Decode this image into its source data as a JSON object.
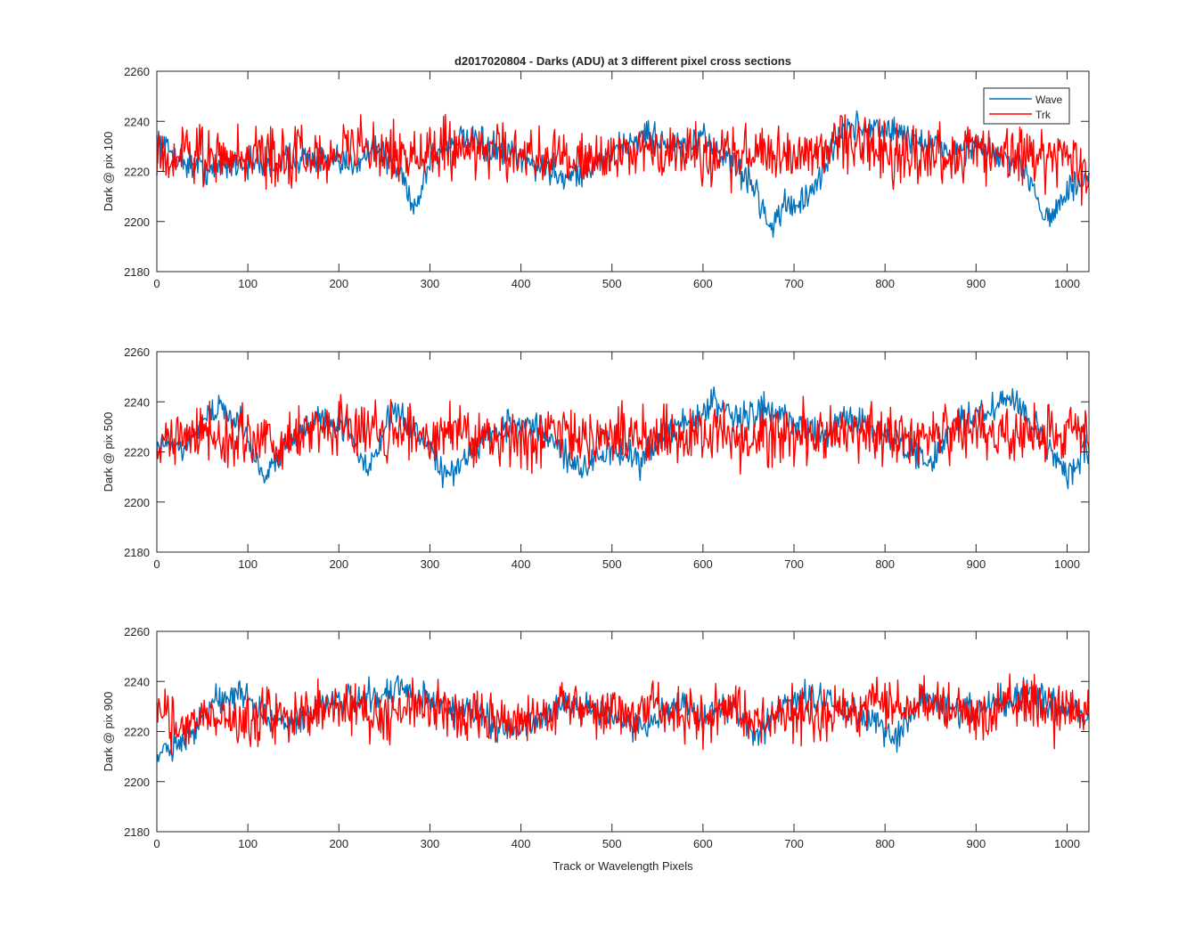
{
  "figure": {
    "title": "d2017020804 - Darks (ADU) at 3 different pixel cross sections",
    "xlabel": "Track or Wavelength Pixels"
  },
  "legend": {
    "placement": "top-right",
    "entries": [
      {
        "name": "Wave",
        "color": "#0072BD"
      },
      {
        "name": "Trk",
        "color": "#FF0000"
      }
    ]
  },
  "chart_data": [
    {
      "type": "line",
      "ylabel": "Dark @ pix 100",
      "xlim": [
        0,
        1024
      ],
      "ylim": [
        2180,
        2260
      ],
      "xticks": [
        0,
        100,
        200,
        300,
        400,
        500,
        600,
        700,
        800,
        900,
        1000
      ],
      "yticks": [
        2180,
        2200,
        2220,
        2240,
        2260
      ],
      "series": [
        {
          "name": "Wave",
          "color": "#0072BD",
          "x": [
            0,
            30,
            60,
            90,
            120,
            150,
            180,
            210,
            240,
            270,
            284,
            300,
            330,
            360,
            390,
            420,
            450,
            480,
            510,
            540,
            570,
            600,
            630,
            660,
            672,
            690,
            720,
            750,
            780,
            810,
            840,
            870,
            900,
            930,
            960,
            975,
            990,
            1000,
            1024
          ],
          "y": [
            2232,
            2224,
            2220,
            2224,
            2222,
            2226,
            2224,
            2222,
            2230,
            2218,
            2205,
            2225,
            2233,
            2230,
            2226,
            2222,
            2218,
            2222,
            2230,
            2235,
            2230,
            2232,
            2225,
            2212,
            2198,
            2206,
            2210,
            2236,
            2238,
            2236,
            2232,
            2228,
            2230,
            2225,
            2218,
            2202,
            2205,
            2212,
            2217
          ]
        },
        {
          "name": "Trk",
          "color": "#FF0000",
          "x": [
            0,
            30,
            60,
            90,
            120,
            150,
            180,
            210,
            240,
            270,
            300,
            330,
            360,
            390,
            420,
            450,
            470,
            480,
            510,
            540,
            570,
            600,
            630,
            660,
            690,
            720,
            750,
            780,
            810,
            840,
            870,
            900,
            930,
            960,
            990,
            1024
          ],
          "y": [
            2228,
            2226,
            2227,
            2226,
            2226,
            2228,
            2224,
            2230,
            2228,
            2226,
            2226,
            2230,
            2229,
            2226,
            2226,
            2225,
            2222,
            2224,
            2226,
            2228,
            2226,
            2228,
            2226,
            2228,
            2226,
            2230,
            2232,
            2230,
            2226,
            2226,
            2228,
            2228,
            2228,
            2226,
            2226,
            2220
          ]
        }
      ]
    },
    {
      "type": "line",
      "ylabel": "Dark @ pix 500",
      "xlim": [
        0,
        1024
      ],
      "ylim": [
        2180,
        2260
      ],
      "xticks": [
        0,
        100,
        200,
        300,
        400,
        500,
        600,
        700,
        800,
        900,
        1000
      ],
      "yticks": [
        2180,
        2200,
        2220,
        2240,
        2260
      ],
      "series": [
        {
          "name": "Wave",
          "color": "#0072BD",
          "x": [
            0,
            30,
            60,
            90,
            120,
            150,
            180,
            210,
            230,
            260,
            290,
            320,
            350,
            380,
            410,
            440,
            470,
            500,
            530,
            560,
            590,
            610,
            640,
            670,
            700,
            730,
            760,
            790,
            820,
            850,
            880,
            910,
            940,
            970,
            1000,
            1024
          ],
          "y": [
            2225,
            2222,
            2238,
            2232,
            2210,
            2225,
            2235,
            2230,
            2212,
            2236,
            2226,
            2210,
            2222,
            2230,
            2232,
            2222,
            2212,
            2222,
            2216,
            2228,
            2232,
            2240,
            2232,
            2238,
            2232,
            2226,
            2234,
            2230,
            2222,
            2216,
            2232,
            2236,
            2242,
            2228,
            2210,
            2222
          ]
        },
        {
          "name": "Trk",
          "color": "#FF0000",
          "x": [
            0,
            30,
            60,
            90,
            120,
            150,
            180,
            210,
            240,
            270,
            300,
            330,
            360,
            390,
            420,
            450,
            480,
            510,
            540,
            570,
            600,
            630,
            660,
            690,
            720,
            750,
            780,
            810,
            840,
            870,
            900,
            930,
            960,
            990,
            1024
          ],
          "y": [
            2224,
            2226,
            2228,
            2226,
            2224,
            2226,
            2230,
            2228,
            2226,
            2228,
            2226,
            2228,
            2226,
            2224,
            2226,
            2228,
            2226,
            2228,
            2226,
            2226,
            2228,
            2226,
            2224,
            2228,
            2228,
            2230,
            2228,
            2226,
            2226,
            2228,
            2228,
            2226,
            2228,
            2226,
            2228
          ]
        }
      ]
    },
    {
      "type": "line",
      "ylabel": "Dark @ pix 900",
      "xlim": [
        0,
        1024
      ],
      "ylim": [
        2180,
        2260
      ],
      "xticks": [
        0,
        100,
        200,
        300,
        400,
        500,
        600,
        700,
        800,
        900,
        1000
      ],
      "yticks": [
        2180,
        2200,
        2220,
        2240,
        2260
      ],
      "series": [
        {
          "name": "Wave",
          "color": "#0072BD",
          "x": [
            0,
            30,
            60,
            90,
            120,
            150,
            180,
            210,
            240,
            270,
            300,
            330,
            360,
            390,
            420,
            450,
            480,
            510,
            540,
            570,
            600,
            630,
            660,
            690,
            720,
            750,
            780,
            810,
            840,
            870,
            900,
            930,
            960,
            990,
            1024
          ],
          "y": [
            2210,
            2215,
            2232,
            2236,
            2225,
            2224,
            2230,
            2232,
            2234,
            2238,
            2232,
            2228,
            2226,
            2220,
            2226,
            2230,
            2228,
            2224,
            2222,
            2232,
            2226,
            2230,
            2218,
            2232,
            2234,
            2230,
            2226,
            2218,
            2234,
            2230,
            2228,
            2232,
            2236,
            2230,
            2226
          ]
        },
        {
          "name": "Trk",
          "color": "#FF0000",
          "x": [
            0,
            30,
            60,
            90,
            120,
            150,
            180,
            210,
            240,
            270,
            300,
            330,
            360,
            390,
            420,
            450,
            480,
            510,
            540,
            570,
            600,
            630,
            660,
            690,
            720,
            750,
            780,
            810,
            840,
            870,
            900,
            930,
            960,
            990,
            1024
          ],
          "y": [
            2228,
            2222,
            2226,
            2224,
            2226,
            2226,
            2230,
            2230,
            2228,
            2230,
            2230,
            2228,
            2228,
            2222,
            2226,
            2230,
            2228,
            2226,
            2226,
            2228,
            2226,
            2228,
            2222,
            2228,
            2226,
            2226,
            2232,
            2230,
            2232,
            2230,
            2228,
            2230,
            2232,
            2228,
            2228
          ]
        }
      ]
    }
  ]
}
